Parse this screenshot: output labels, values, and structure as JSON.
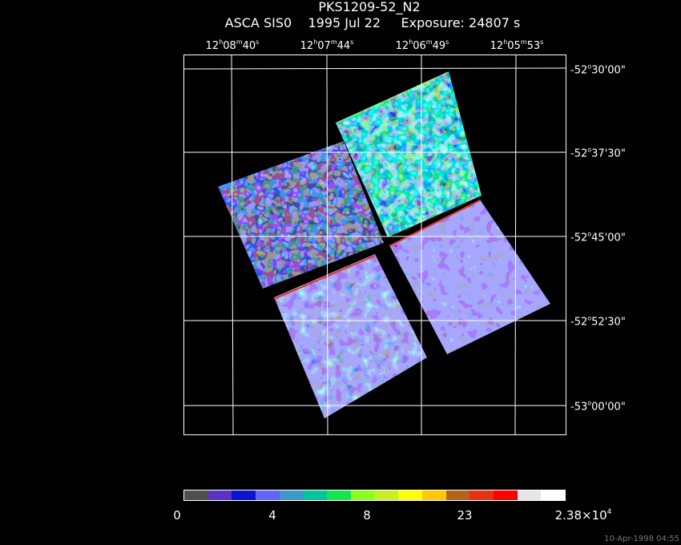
{
  "title": {
    "line1": "PKS1209-52_N2",
    "line2": "ASCA SIS0    1995 Jul 22     Exposure: 24807 s"
  },
  "ra_axis": [
    {
      "h": "12",
      "m": "08",
      "s": "40"
    },
    {
      "h": "12",
      "m": "07",
      "s": "44"
    },
    {
      "h": "12",
      "m": "06",
      "s": "49"
    },
    {
      "h": "12",
      "m": "05",
      "s": "53"
    }
  ],
  "dec_axis": [
    {
      "d": "-52",
      "m": "30",
      "s": "00"
    },
    {
      "d": "-52",
      "m": "37",
      "s": "30"
    },
    {
      "d": "-52",
      "m": "45",
      "s": "00"
    },
    {
      "d": "-52",
      "m": "52",
      "s": "30"
    },
    {
      "d": "-53",
      "m": "00",
      "s": "00"
    }
  ],
  "colorbar": {
    "colors": [
      "#505050",
      "#5a32c8",
      "#0a14d2",
      "#6464ff",
      "#3c9ac8",
      "#00c89a",
      "#14e650",
      "#8cff1e",
      "#c8f01e",
      "#ffff00",
      "#ffc800",
      "#b46414",
      "#e63214",
      "#ff0000",
      "#e6e6e6",
      "#ffffff"
    ],
    "labels": {
      "v0": "0",
      "v1": "4",
      "v2": "8",
      "v3": "23",
      "max_mantissa": "2.38×10",
      "max_exponent": "4"
    }
  },
  "timestamp": "10-Apr-1998 04:55"
}
